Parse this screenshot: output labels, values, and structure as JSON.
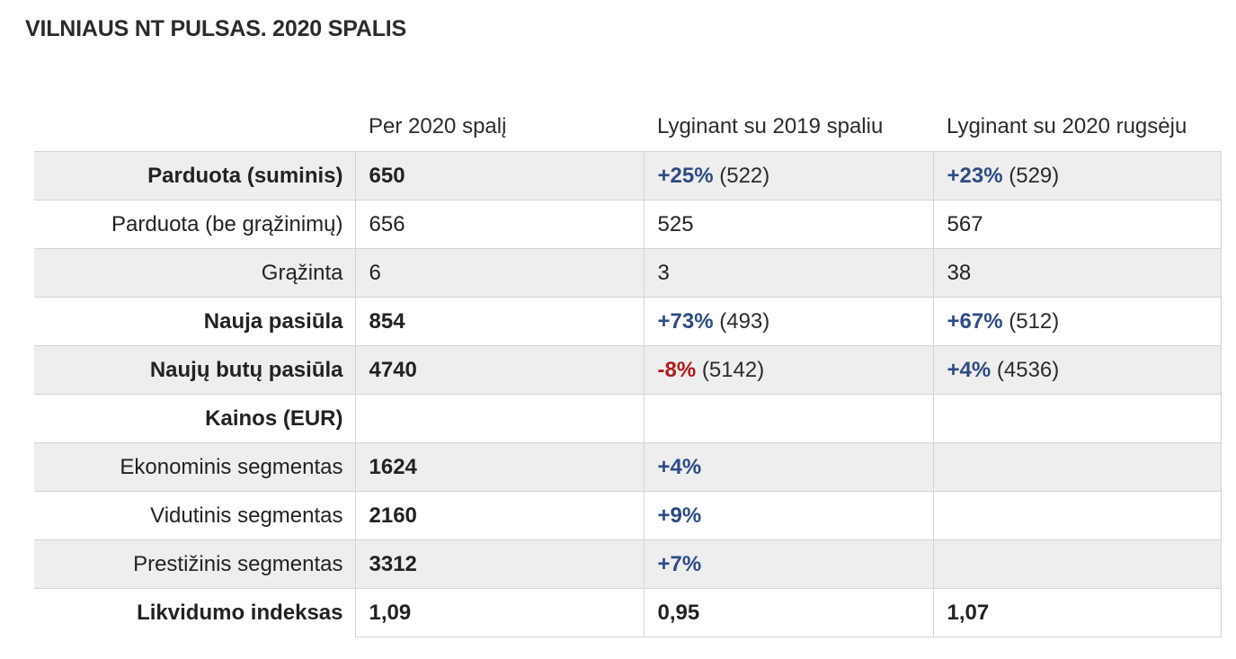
{
  "title": "VILNIAUS NT PULSAS. 2020 SPALIS",
  "table": {
    "headers": [
      "",
      "Per 2020 spalį",
      "Lyginant su 2019 spaliu",
      "Lyginant su 2020 rugsėju"
    ],
    "rows": [
      {
        "label": "Parduota (suminis)",
        "label_bold": true,
        "shade": true,
        "v1": "650",
        "v1_bold": true,
        "v2_change": "+25%",
        "v2_sign": "pos",
        "v2_paren": "(522)",
        "v3_change": "+23%",
        "v3_sign": "pos",
        "v3_paren": "(529)"
      },
      {
        "label": "Parduota (be grąžinimų)",
        "label_bold": false,
        "shade": false,
        "v1": "656",
        "v1_bold": false,
        "v2_plain": "525",
        "v3_plain": "567"
      },
      {
        "label": "Grąžinta",
        "label_bold": false,
        "shade": true,
        "v1": "6",
        "v1_bold": false,
        "v2_plain": "3",
        "v3_plain": "38"
      },
      {
        "label": "Nauja pasiūla",
        "label_bold": true,
        "shade": false,
        "v1": "854",
        "v1_bold": true,
        "v2_change": "+73%",
        "v2_sign": "pos",
        "v2_paren": "(493)",
        "v3_change": "+67%",
        "v3_sign": "pos",
        "v3_paren": "(512)"
      },
      {
        "label": "Naujų butų pasiūla",
        "label_bold": true,
        "shade": true,
        "v1": "4740",
        "v1_bold": true,
        "v2_change": "-8%",
        "v2_sign": "neg",
        "v2_paren": "(5142)",
        "v3_change": "+4%",
        "v3_sign": "pos",
        "v3_paren": "(4536)"
      },
      {
        "label": "Kainos (EUR)",
        "label_bold": true,
        "shade": false,
        "v1": "",
        "v1_bold": false
      },
      {
        "label": "Ekonominis segmentas",
        "label_bold": false,
        "shade": true,
        "v1": "1624",
        "v1_bold": true,
        "v2_change": "+4%",
        "v2_sign": "pos"
      },
      {
        "label": "Vidutinis segmentas",
        "label_bold": false,
        "shade": false,
        "v1": "2160",
        "v1_bold": true,
        "v2_change": "+9%",
        "v2_sign": "pos"
      },
      {
        "label": "Prestižinis segmentas",
        "label_bold": false,
        "shade": true,
        "v1": "3312",
        "v1_bold": true,
        "v2_change": "+7%",
        "v2_sign": "pos"
      },
      {
        "label": "Likvidumo indeksas",
        "label_bold": true,
        "shade": false,
        "v1": "1,09",
        "v1_bold": true,
        "v2_plain_bold": "0,95",
        "v3_plain_bold": "1,07"
      }
    ]
  },
  "colors": {
    "positive": "#2e4a86",
    "negative": "#b31b1b",
    "shade": "#eeeeee",
    "border": "#d4d4d4"
  }
}
